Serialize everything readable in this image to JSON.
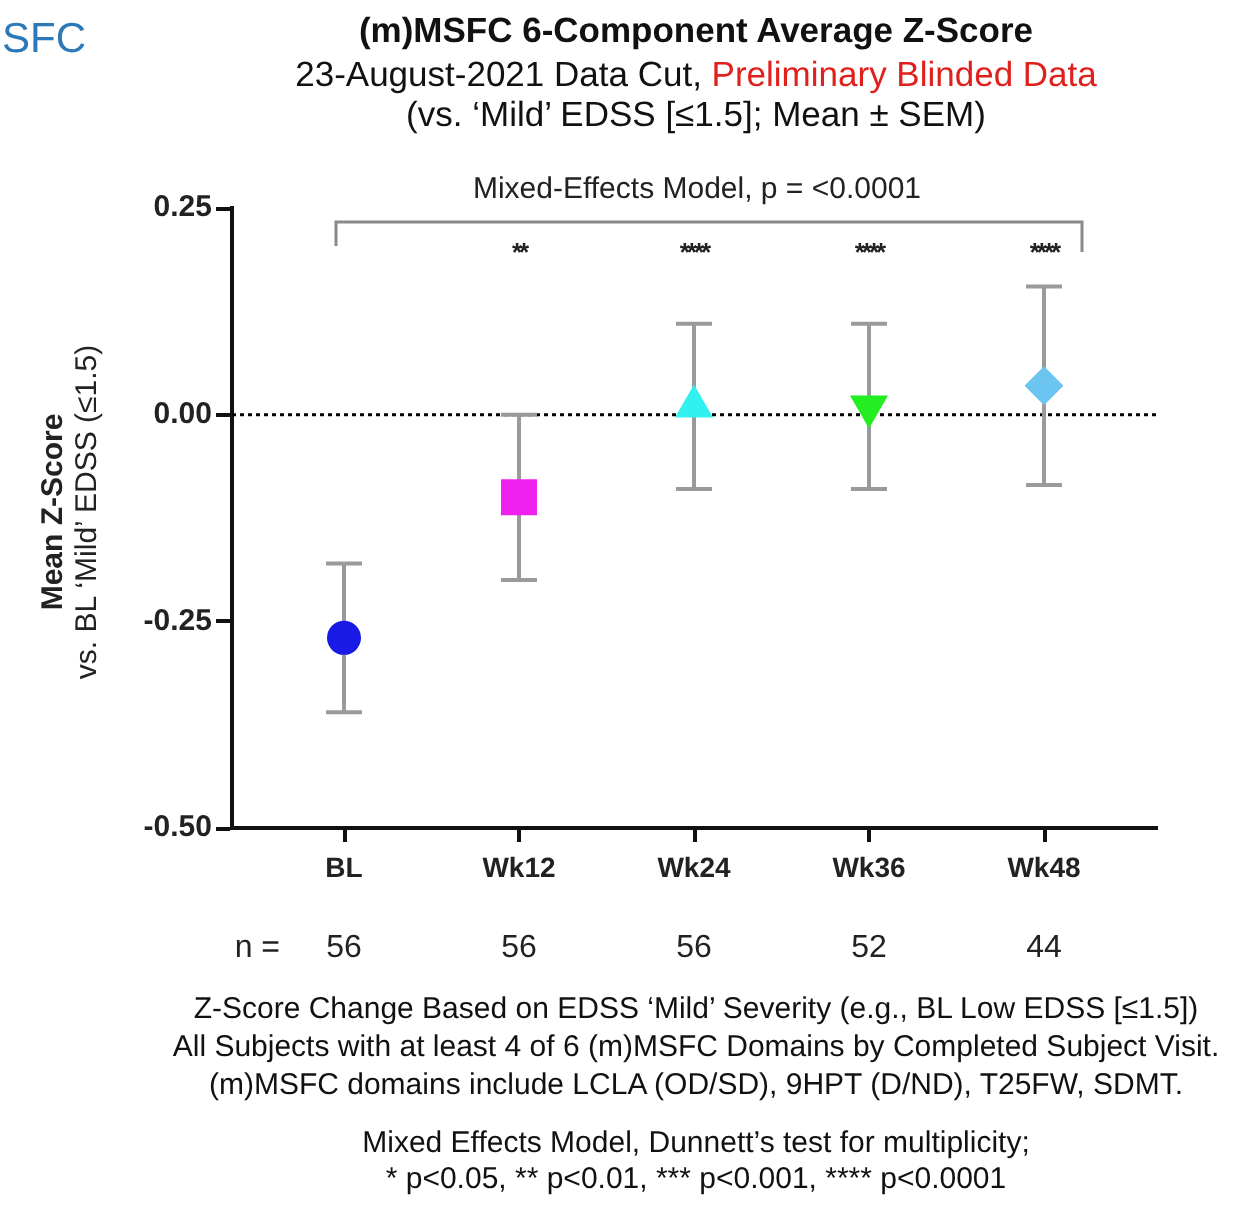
{
  "chart_data": {
    "type": "scatter",
    "title": "(m)MSFC 6-Component Average Z-Score",
    "subtitle": "23-August-2021 Data Cut, Preliminary Blinded Data\n(vs. ‘Mild’ EDSS [≤1.5]; Mean ± SEM)",
    "ylabel": "Mean Z-Score\nvs. BL ‘Mild’ EDSS (≤1.5)",
    "categories": [
      "BL",
      "Wk12",
      "Wk24",
      "Wk36",
      "Wk48"
    ],
    "series": [
      {
        "color": "#1a1ae6",
        "marker": "circle",
        "values": [
          -0.27,
          null,
          null,
          null,
          null
        ],
        "errors": [
          0.09,
          null,
          null,
          null,
          null
        ]
      },
      {
        "color": "#f020f0",
        "marker": "square",
        "values": [
          null,
          -0.1,
          null,
          null,
          null
        ],
        "errors": [
          null,
          0.1,
          null,
          null,
          null
        ]
      },
      {
        "color": "#33f0f0",
        "marker": "triangle",
        "values": [
          null,
          null,
          0.01,
          null,
          null
        ],
        "errors": [
          null,
          null,
          0.1,
          null,
          null
        ]
      },
      {
        "color": "#22ee22",
        "marker": "triangle-down",
        "values": [
          null,
          null,
          null,
          0.01,
          null
        ],
        "errors": [
          null,
          null,
          null,
          0.1,
          null
        ]
      },
      {
        "color": "#6cc4f0",
        "marker": "diamond",
        "values": [
          null,
          null,
          null,
          null,
          0.035
        ],
        "errors": [
          null,
          null,
          null,
          null,
          0.12
        ]
      }
    ],
    "ylim": [
      -0.5,
      0.25
    ],
    "yticks": [
      {
        "value": -0.5,
        "label": "-0.50"
      },
      -0.25,
      {
        "value": 0,
        "label": "0.00"
      },
      0.25
    ],
    "ref_lines": [
      {
        "axis": "y",
        "value": 0,
        "color": "#000000",
        "line_style": "dotted"
      }
    ],
    "annotations": [
      "SFC",
      "Mixed-Effects Model, p = <0.0001",
      "** **** **** ****",
      "n =",
      "56 56 56 52 44",
      "Z-Score Change Based on EDSS ‘Mild’ Severity (e.g., BL Low EDSS [≤1.5])\nAll Subjects with at least 4 of 6 (m)MSFC Domains by Completed Subject Visit.\n(m)MSFC domains include LCLA (OD/SD), 9HPT (D/ND), T25FW, SDMT.",
      "Mixed Effects Model, Dunnett’s test for multiplicity;\n* p<0.05, ** p<0.01, *** p<0.001, **** p<0.0001"
    ],
    "grid": false,
    "legend": false
  }
}
